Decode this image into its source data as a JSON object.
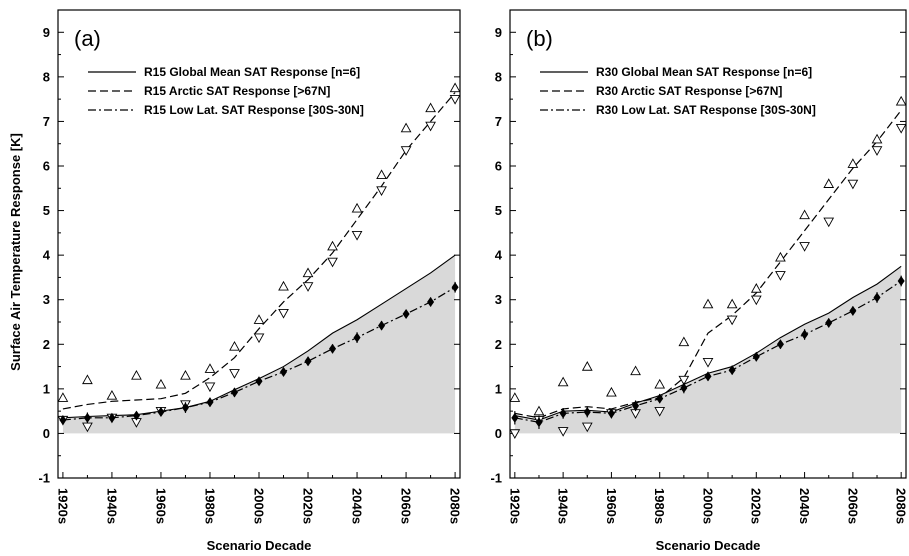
{
  "chart_data": [
    {
      "type": "line",
      "panel_label": "(a)",
      "xlabel": "Scenario Decade",
      "ylabel": "Surface Air Temperature Response [K]",
      "ylim": [
        -1,
        9.5
      ],
      "yticks": [
        -1,
        0,
        1,
        2,
        3,
        4,
        5,
        6,
        7,
        8,
        9
      ],
      "x": [
        1920,
        1930,
        1940,
        1950,
        1960,
        1970,
        1980,
        1990,
        2000,
        2010,
        2020,
        2030,
        2040,
        2050,
        2060,
        2070,
        2080
      ],
      "xticks": [
        1920,
        1940,
        1960,
        1980,
        2000,
        2020,
        2040,
        2060,
        2080
      ],
      "xtick_labels": [
        "1920s",
        "1940s",
        "1960s",
        "1980s",
        "2000s",
        "2020s",
        "2040s",
        "2060s",
        "2080s"
      ],
      "legend_position": "top-left",
      "series": [
        {
          "name": "R15 Global Mean SAT Response [n=6]",
          "style": "solid",
          "values": [
            0.35,
            0.38,
            0.4,
            0.42,
            0.5,
            0.58,
            0.72,
            0.98,
            1.23,
            1.5,
            1.85,
            2.25,
            2.55,
            2.9,
            3.25,
            3.6,
            4.0
          ]
        },
        {
          "name": "R15 Arctic SAT Response [>67N]",
          "style": "dashed",
          "values": [
            0.55,
            0.65,
            0.72,
            0.75,
            0.78,
            0.9,
            1.25,
            1.7,
            2.35,
            2.95,
            3.45,
            4.05,
            4.8,
            5.55,
            6.35,
            7.0,
            7.65
          ],
          "upper_markers": [
            0.8,
            1.2,
            0.85,
            1.3,
            1.1,
            1.3,
            1.45,
            1.95,
            2.55,
            3.3,
            3.6,
            4.2,
            5.05,
            5.8,
            6.85,
            7.3,
            7.75
          ],
          "lower_markers": [
            0.3,
            0.15,
            0.35,
            0.25,
            0.5,
            0.65,
            1.05,
            1.35,
            2.15,
            2.7,
            3.3,
            3.85,
            4.45,
            5.45,
            6.35,
            6.9,
            7.5
          ]
        },
        {
          "name": "R15 Low Lat. SAT Response [30S-30N]",
          "style": "dash-dot",
          "values": [
            0.3,
            0.35,
            0.35,
            0.4,
            0.48,
            0.58,
            0.7,
            0.92,
            1.17,
            1.38,
            1.62,
            1.9,
            2.15,
            2.42,
            2.68,
            2.95,
            3.28
          ],
          "error": [
            0.06,
            0.12,
            0.08,
            0.08,
            0.07,
            0.12,
            0.1,
            0.1,
            0.08,
            0.08,
            0.1,
            0.1,
            0.12,
            0.1,
            0.08,
            0.1,
            0.12
          ]
        }
      ],
      "shaded_region": "fill under Global Mean SAT Response (gray)"
    },
    {
      "type": "line",
      "panel_label": "(b)",
      "xlabel": "Scenario Decade",
      "ylabel": "",
      "ylim": [
        -1,
        9.5
      ],
      "yticks": [
        -1,
        0,
        1,
        2,
        3,
        4,
        5,
        6,
        7,
        8,
        9
      ],
      "x": [
        1920,
        1930,
        1940,
        1950,
        1960,
        1970,
        1980,
        1990,
        2000,
        2010,
        2020,
        2030,
        2040,
        2050,
        2060,
        2070,
        2080
      ],
      "xticks": [
        1920,
        1940,
        1960,
        1980,
        2000,
        2020,
        2040,
        2060,
        2080
      ],
      "xtick_labels": [
        "1920s",
        "1940s",
        "1960s",
        "1980s",
        "2000s",
        "2020s",
        "2040s",
        "2060s",
        "2080s"
      ],
      "legend_position": "top-left",
      "series": [
        {
          "name": "R30 Global Mean SAT Response [n=6]",
          "style": "solid",
          "values": [
            0.4,
            0.3,
            0.5,
            0.52,
            0.48,
            0.68,
            0.85,
            1.1,
            1.35,
            1.5,
            1.8,
            2.15,
            2.45,
            2.7,
            3.05,
            3.35,
            3.75
          ]
        },
        {
          "name": "R30 Arctic SAT Response [>67N]",
          "style": "dashed",
          "values": [
            0.45,
            0.35,
            0.55,
            0.6,
            0.55,
            0.7,
            0.8,
            1.25,
            2.25,
            2.65,
            3.15,
            3.85,
            4.55,
            5.25,
            5.95,
            6.55,
            7.25
          ],
          "upper_markers": [
            0.8,
            0.5,
            1.15,
            1.5,
            0.92,
            1.4,
            1.1,
            2.05,
            2.9,
            2.9,
            3.25,
            3.95,
            4.9,
            5.6,
            6.05,
            6.6,
            7.45
          ],
          "lower_markers": [
            0.0,
            0.3,
            0.05,
            0.15,
            0.45,
            0.45,
            0.5,
            1.2,
            1.6,
            2.55,
            3.0,
            3.55,
            4.2,
            4.75,
            5.6,
            6.35,
            6.85
          ]
        },
        {
          "name": "R30 Low Lat. SAT Response [30S-30N]",
          "style": "dash-dot",
          "values": [
            0.35,
            0.25,
            0.45,
            0.48,
            0.45,
            0.62,
            0.78,
            1.02,
            1.28,
            1.42,
            1.72,
            2.0,
            2.22,
            2.48,
            2.75,
            3.05,
            3.42
          ],
          "error": [
            0.15,
            0.15,
            0.12,
            0.12,
            0.1,
            0.12,
            0.1,
            0.12,
            0.1,
            0.1,
            0.1,
            0.1,
            0.12,
            0.1,
            0.1,
            0.12,
            0.12
          ]
        }
      ],
      "shaded_region": "fill under Global Mean SAT Response (gray)"
    }
  ]
}
